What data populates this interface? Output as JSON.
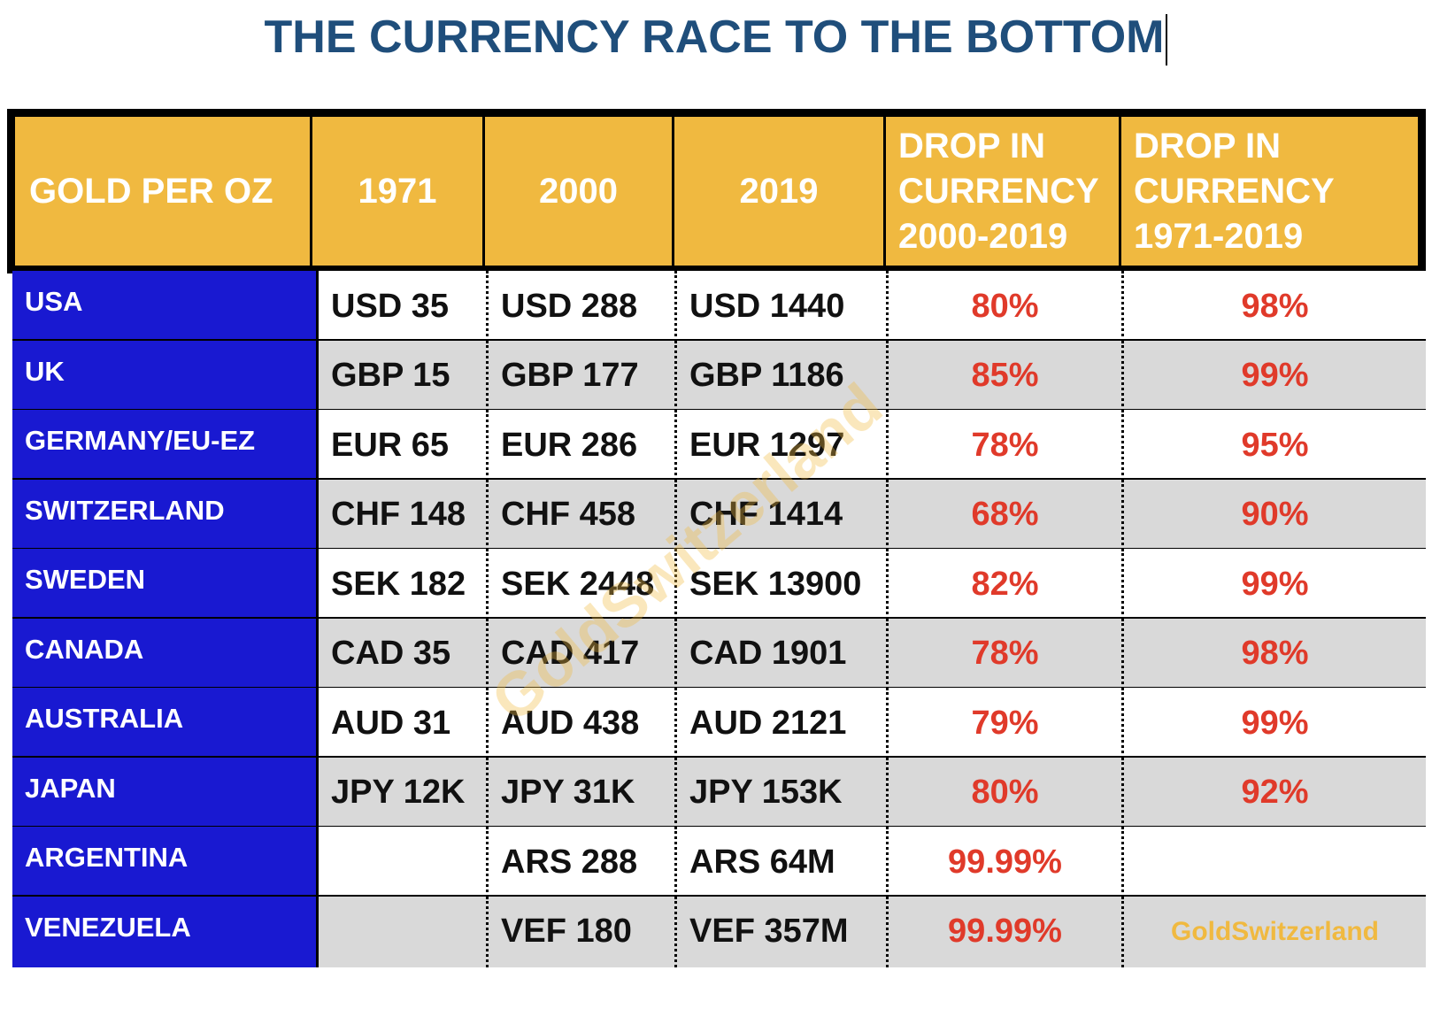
{
  "title": "THE CURRENCY RACE TO THE BOTTOM",
  "colors": {
    "title": "#1f4e7b",
    "header_bg": "#f0b940",
    "country_bg": "#1919d1",
    "row_alt_bg": "#d9d9d9",
    "percent": "#e03a2a"
  },
  "headers": {
    "label": "GOLD PER OZ",
    "y1971": "1971",
    "y2000": "2000",
    "y2019": "2019",
    "drop_a_1": "DROP IN",
    "drop_a_2": "CURRENCY",
    "drop_a_3": "2000-2019",
    "drop_b_1": "DROP IN",
    "drop_b_2": "CURRENCY",
    "drop_b_3": "1971-2019"
  },
  "watermark": "GoldSwitzerland",
  "chart_data": {
    "type": "table",
    "title": "THE CURRENCY RACE TO THE BOTTOM",
    "columns": [
      "GOLD PER OZ",
      "1971",
      "2000",
      "2019",
      "DROP IN CURRENCY 2000-2019",
      "DROP IN CURRENCY 1971-2019"
    ],
    "rows": [
      {
        "country": "USA",
        "c1971": "USD 35",
        "c2000": "USD 288",
        "c2019": "USD 1440",
        "drop_2000_2019": "80%",
        "drop_1971_2019": "98%"
      },
      {
        "country": "UK",
        "c1971": "GBP 15",
        "c2000": "GBP 177",
        "c2019": "GBP 1186",
        "drop_2000_2019": "85%",
        "drop_1971_2019": "99%"
      },
      {
        "country": "GERMANY/EU-EZ",
        "c1971": "EUR 65",
        "c2000": "EUR 286",
        "c2019": "EUR 1297",
        "drop_2000_2019": "78%",
        "drop_1971_2019": "95%"
      },
      {
        "country": "SWITZERLAND",
        "c1971": "CHF 148",
        "c2000": "CHF 458",
        "c2019": "CHF 1414",
        "drop_2000_2019": "68%",
        "drop_1971_2019": "90%"
      },
      {
        "country": "SWEDEN",
        "c1971": "SEK 182",
        "c2000": "SEK 2448",
        "c2019": "SEK 13900",
        "drop_2000_2019": "82%",
        "drop_1971_2019": "99%"
      },
      {
        "country": "CANADA",
        "c1971": "CAD 35",
        "c2000": "CAD 417",
        "c2019": "CAD 1901",
        "drop_2000_2019": "78%",
        "drop_1971_2019": "98%"
      },
      {
        "country": "AUSTRALIA",
        "c1971": "AUD 31",
        "c2000": "AUD 438",
        "c2019": "AUD 2121",
        "drop_2000_2019": "79%",
        "drop_1971_2019": "99%"
      },
      {
        "country": "JAPAN",
        "c1971": "JPY 12K",
        "c2000": "JPY 31K",
        "c2019": "JPY 153K",
        "drop_2000_2019": "80%",
        "drop_1971_2019": "92%"
      },
      {
        "country": "ARGENTINA",
        "c1971": "",
        "c2000": "ARS 288",
        "c2019": "ARS 64M",
        "drop_2000_2019": "99.99%",
        "drop_1971_2019": ""
      },
      {
        "country": "VENEZUELA",
        "c1971": "",
        "c2000": "VEF 180",
        "c2019": "VEF 357M",
        "drop_2000_2019": "99.99%",
        "drop_1971_2019": "GoldSwitzerland"
      }
    ]
  }
}
